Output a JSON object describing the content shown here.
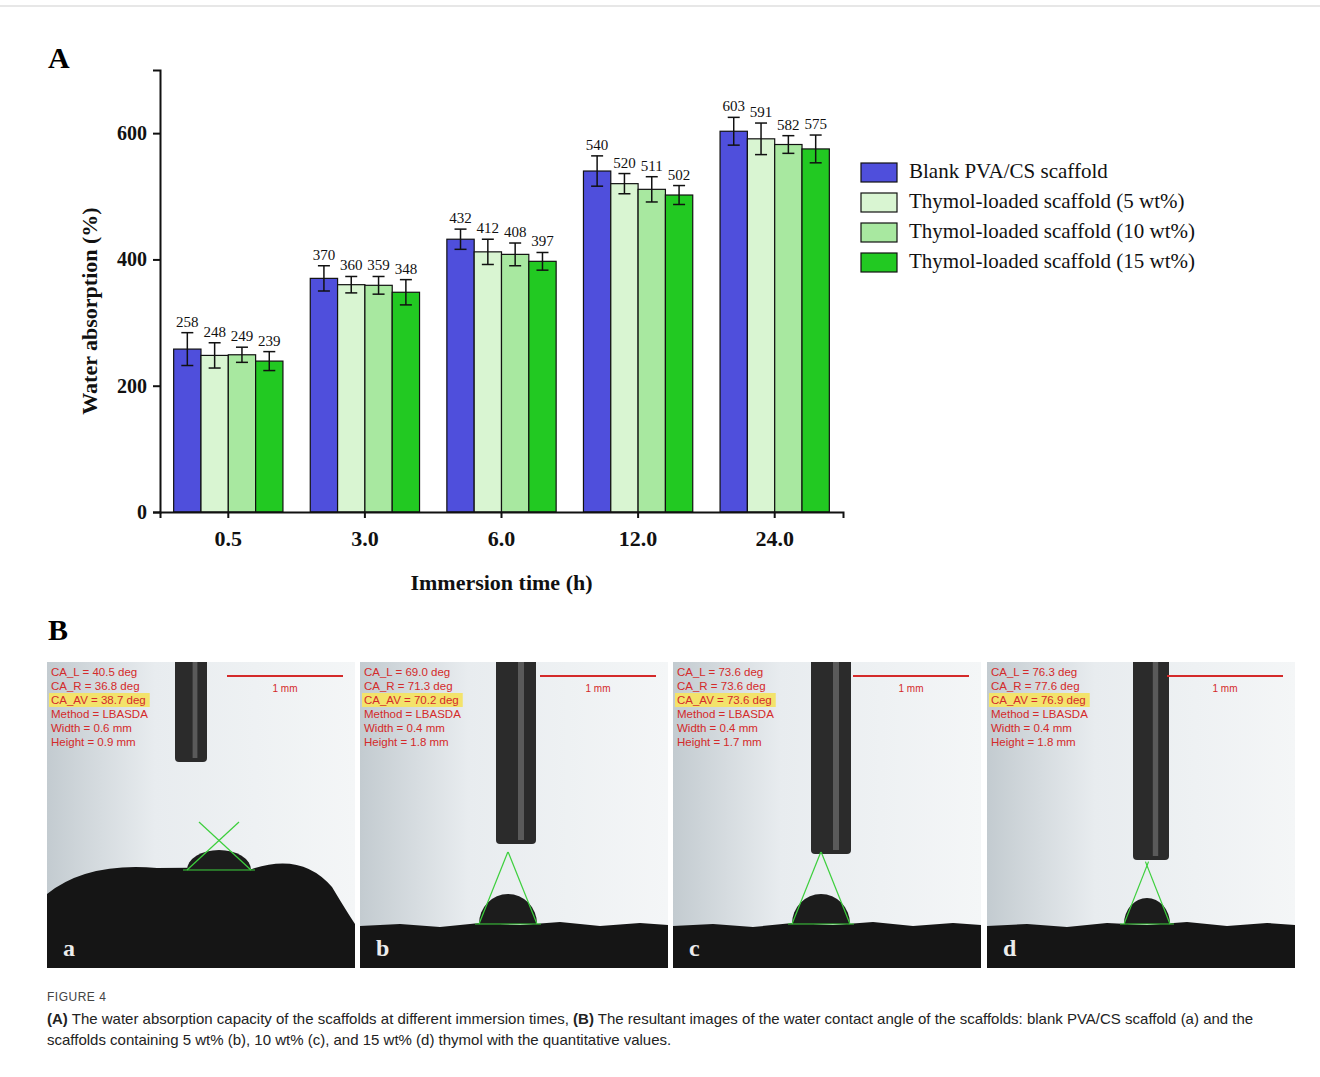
{
  "chart_data": {
    "type": "bar",
    "x_label": "Immersion time (h)",
    "y_label": "Water absorption (%)",
    "categories": [
      "0.5",
      "3.0",
      "6.0",
      "12.0",
      "24.0"
    ],
    "series": [
      {
        "name": "Blank PVA/CS scaffold",
        "color": "#4f4fdc",
        "values": [
          258,
          370,
          432,
          540,
          603
        ],
        "errors": [
          26,
          20,
          16,
          24,
          22
        ]
      },
      {
        "name": "Thymol-loaded scaffold (5 wt%)",
        "color": "#d9f5d2",
        "values": [
          248,
          360,
          412,
          520,
          591
        ],
        "errors": [
          20,
          13,
          20,
          16,
          25
        ]
      },
      {
        "name": "Thymol-loaded scaffold (10 wt%)",
        "color": "#a8e8a0",
        "values": [
          249,
          359,
          408,
          511,
          582
        ],
        "errors": [
          12,
          14,
          18,
          20,
          14
        ]
      },
      {
        "name": "Thymol-loaded scaffold (15 wt%)",
        "color": "#22c922",
        "values": [
          239,
          348,
          397,
          502,
          575
        ],
        "errors": [
          15,
          20,
          14,
          15,
          22
        ]
      }
    ],
    "ylim": [
      0,
      700
    ],
    "yticks": [
      0,
      200,
      400,
      600
    ],
    "data_labels": true,
    "legend": "right"
  },
  "figure": {
    "panel_labels": [
      "A",
      "B"
    ],
    "images": [
      {
        "letter": "a",
        "scale_bar": "1 mm",
        "overlay": [
          "CA_L = 40.5 deg",
          "CA_R = 36.8 deg",
          "CA_AV = 38.7 deg",
          "Method = LBASDA",
          "Width = 0.6 mm",
          "Height = 0.9 mm"
        ]
      },
      {
        "letter": "b",
        "scale_bar": "1 mm",
        "overlay": [
          "CA_L = 69.0 deg",
          "CA_R = 71.3 deg",
          "CA_AV = 70.2 deg",
          "Method = LBASDA",
          "Width = 0.4 mm",
          "Height = 1.8 mm"
        ]
      },
      {
        "letter": "c",
        "scale_bar": "1 mm",
        "overlay": [
          "CA_L = 73.6 deg",
          "CA_R = 73.6 deg",
          "CA_AV = 73.6 deg",
          "Method = LBASDA",
          "Width = 0.4 mm",
          "Height = 1.7 mm"
        ]
      },
      {
        "letter": "d",
        "scale_bar": "1 mm",
        "overlay": [
          "CA_L = 76.3 deg",
          "CA_R = 77.6 deg",
          "CA_AV = 76.9 deg",
          "Method = LBASDA",
          "Width = 0.4 mm",
          "Height = 1.8 mm"
        ]
      }
    ],
    "caption": {
      "label": "FIGURE 4",
      "parts": [
        {
          "text": "(A)",
          "bold": true
        },
        {
          "text": " The water absorption capacity of the scaffolds at different immersion times, ",
          "bold": false
        },
        {
          "text": "(B)",
          "bold": true
        },
        {
          "text": " The resultant images of the water contact angle of the scaffolds: blank PVA/CS scaffold (a) and the scaffolds containing 5 wt% (b), 10 wt% (c), and 15 wt% (d) thymol with the quantitative values.",
          "bold": false
        }
      ]
    }
  }
}
